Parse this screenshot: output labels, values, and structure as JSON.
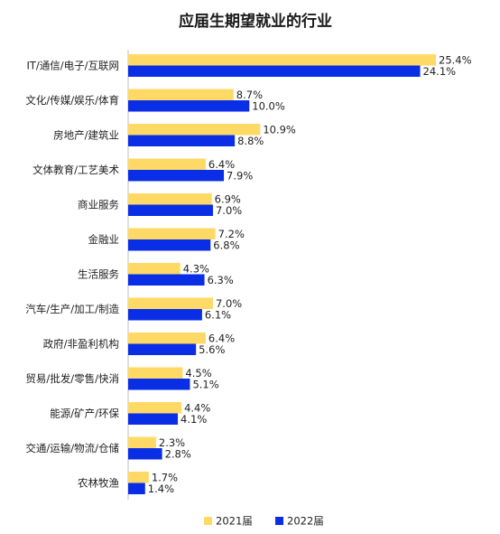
{
  "chart_data": {
    "type": "bar",
    "orientation": "horizontal",
    "title": "应届生期望就业的行业",
    "categories": [
      "IT/通信/电子/互联网",
      "文化/传媒/娱乐/体育",
      "房地产/建筑业",
      "文体教育/工艺美术",
      "商业服务",
      "金融业",
      "生活服务",
      "汽车/生产/加工/制造",
      "政府/非盈利机构",
      "贸易/批发/零售/快消",
      "能源/矿产/环保",
      "交通/运输/物流/仓储",
      "农林牧渔"
    ],
    "series": [
      {
        "name": "2021届",
        "color": "#FFD966",
        "values": [
          25.4,
          8.7,
          10.9,
          6.4,
          6.9,
          7.2,
          4.3,
          7.0,
          6.4,
          4.5,
          4.4,
          2.3,
          1.7
        ],
        "labels": [
          "25.4%",
          "8.7%",
          "10.9%",
          "6.4%",
          "6.9%",
          "7.2%",
          "4.3%",
          "7.0%",
          "6.4%",
          "4.5%",
          "4.4%",
          "2.3%",
          "1.7%"
        ]
      },
      {
        "name": "2022届",
        "color": "#0A2EE6",
        "values": [
          24.1,
          10.0,
          8.8,
          7.9,
          7.0,
          6.8,
          6.3,
          6.1,
          5.6,
          5.1,
          4.1,
          2.8,
          1.4
        ],
        "labels": [
          "24.1%",
          "10.0%",
          "8.8%",
          "7.9%",
          "7.0%",
          "6.8%",
          "6.3%",
          "6.1%",
          "5.6%",
          "5.1%",
          "4.1%",
          "2.8%",
          "1.4%"
        ]
      }
    ],
    "xlim": [
      0,
      27
    ],
    "grid": false,
    "legend_position": "bottom-center"
  }
}
